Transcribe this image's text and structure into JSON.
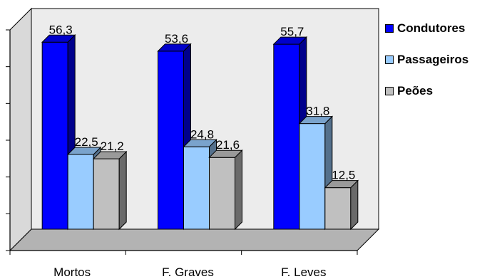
{
  "chart_data": {
    "type": "bar",
    "categories": [
      "Mortos",
      "F. Graves",
      "F. Leves"
    ],
    "series": [
      {
        "name": "Condutores",
        "values": [
          56.3,
          53.6,
          55.7
        ],
        "labels": [
          "56,3",
          "53,6",
          "55,7"
        ],
        "color": "#0000ff"
      },
      {
        "name": "Passageiros",
        "values": [
          22.5,
          24.8,
          31.8
        ],
        "labels": [
          "22,5",
          "24,8",
          "31,8"
        ],
        "color": "#99ccff"
      },
      {
        "name": "Peões",
        "values": [
          21.2,
          21.6,
          12.5
        ],
        "labels": [
          "21,2",
          "21,6",
          "12,5"
        ],
        "color": "#c0c0c0"
      }
    ],
    "ylim": [
      0,
      60
    ],
    "grid": false,
    "legend_position": "right",
    "style": "3d-column"
  }
}
